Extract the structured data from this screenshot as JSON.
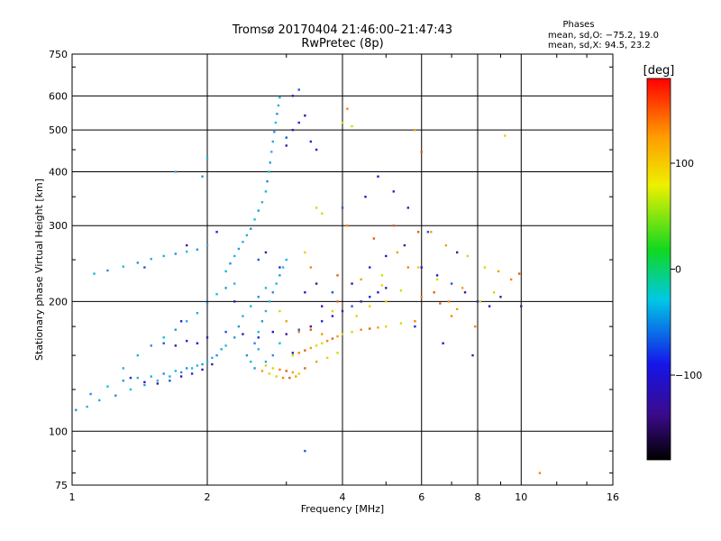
{
  "chart_data": {
    "type": "scatter",
    "title": "Tromsø 20170404 21:46:00–21:47:43",
    "subtitle": "RwPretec (8p)",
    "xlabel": "Frequency [MHz]",
    "ylabel": "Stationary phase Virtual Height [km]",
    "x_scale": "log",
    "y_scale": "log",
    "xlim": [
      1,
      16
    ],
    "ylim": [
      75,
      750
    ],
    "x_ticks": [
      1,
      2,
      4,
      6,
      8,
      10,
      16
    ],
    "y_ticks": [
      75,
      100,
      200,
      300,
      400,
      500,
      600,
      750
    ],
    "x_tick_labels": [
      "1",
      "2",
      "4",
      "6",
      "8",
      "10",
      "16"
    ],
    "y_tick_labels": [
      "75",
      "100",
      "200",
      "300",
      "400",
      "500",
      "600",
      "750"
    ],
    "grid": true,
    "colorbar": {
      "label": "[deg]",
      "range": [
        -180,
        180
      ],
      "ticks": [
        100,
        0,
        -100
      ],
      "tick_labels": [
        "100",
        "0",
        "−100"
      ]
    },
    "stats": {
      "heading": "Phases",
      "line_o": "mean, sd,O: −75.2, 19.0",
      "line_x": "mean, sd,X:  94.5, 23.2"
    },
    "series": [
      {
        "points": [
          [
            1.02,
            112
          ],
          [
            1.08,
            114
          ],
          [
            1.15,
            118
          ],
          [
            1.25,
            121
          ],
          [
            1.35,
            125
          ],
          [
            1.45,
            128
          ],
          [
            1.55,
            131
          ],
          [
            1.65,
            134
          ],
          [
            1.75,
            137
          ],
          [
            1.85,
            140
          ],
          [
            1.95,
            143
          ],
          [
            2.05,
            148
          ],
          [
            2.15,
            155
          ],
          [
            1.1,
            122
          ],
          [
            1.2,
            127
          ],
          [
            1.3,
            131
          ],
          [
            1.4,
            133
          ],
          [
            1.5,
            134
          ],
          [
            1.6,
            136
          ],
          [
            1.7,
            138
          ],
          [
            1.8,
            140
          ],
          [
            1.9,
            142
          ],
          [
            2.0,
            145
          ],
          [
            2.1,
            150
          ],
          [
            2.2,
            158
          ],
          [
            2.3,
            165
          ],
          [
            1.3,
            140
          ],
          [
            1.4,
            150
          ],
          [
            1.5,
            158
          ],
          [
            1.6,
            165
          ],
          [
            1.7,
            172
          ],
          [
            1.8,
            180
          ],
          [
            1.9,
            188
          ],
          [
            2.0,
            198
          ],
          [
            2.1,
            208
          ],
          [
            2.2,
            215
          ],
          [
            2.3,
            220
          ],
          [
            1.12,
            232
          ],
          [
            1.2,
            236
          ],
          [
            1.3,
            241
          ],
          [
            1.4,
            246
          ],
          [
            1.5,
            251
          ],
          [
            1.6,
            255
          ],
          [
            1.7,
            258
          ],
          [
            1.8,
            261
          ],
          [
            1.9,
            264
          ],
          [
            2.0,
            270
          ],
          [
            2.2,
            235
          ],
          [
            2.25,
            245
          ],
          [
            2.3,
            255
          ],
          [
            2.35,
            265
          ],
          [
            2.4,
            275
          ],
          [
            2.45,
            285
          ],
          [
            2.5,
            295
          ],
          [
            2.55,
            310
          ],
          [
            2.6,
            325
          ],
          [
            2.65,
            340
          ],
          [
            2.7,
            360
          ],
          [
            2.72,
            380
          ],
          [
            2.74,
            400
          ],
          [
            2.76,
            420
          ],
          [
            2.78,
            445
          ],
          [
            2.8,
            470
          ],
          [
            2.82,
            495
          ],
          [
            2.84,
            520
          ],
          [
            2.86,
            545
          ],
          [
            2.88,
            570
          ],
          [
            2.9,
            595
          ],
          [
            2.55,
            160
          ],
          [
            2.6,
            170
          ],
          [
            2.65,
            180
          ],
          [
            2.7,
            190
          ],
          [
            2.75,
            200
          ],
          [
            2.8,
            210
          ],
          [
            2.85,
            220
          ],
          [
            2.9,
            230
          ],
          [
            2.95,
            240
          ],
          [
            3.0,
            250
          ],
          [
            2.45,
            150
          ],
          [
            2.5,
            145
          ],
          [
            2.55,
            140
          ],
          [
            2.6,
            155
          ],
          [
            2.7,
            145
          ],
          [
            2.8,
            150
          ],
          [
            2.9,
            160
          ],
          [
            2.35,
            175
          ],
          [
            2.4,
            185
          ],
          [
            2.5,
            195
          ],
          [
            2.6,
            205
          ],
          [
            2.7,
            215
          ],
          [
            1.95,
            390
          ],
          [
            1.7,
            400
          ],
          [
            2.0,
            430
          ]
        ]
      },
      {
        "points": [
          [
            1.35,
            133
          ],
          [
            1.45,
            130
          ],
          [
            1.55,
            129
          ],
          [
            1.65,
            131
          ],
          [
            1.75,
            134
          ],
          [
            1.85,
            136
          ],
          [
            1.95,
            139
          ],
          [
            2.05,
            143
          ],
          [
            1.6,
            160
          ],
          [
            1.7,
            158
          ],
          [
            1.8,
            162
          ],
          [
            1.9,
            160
          ],
          [
            2.0,
            165
          ],
          [
            2.2,
            170
          ],
          [
            2.4,
            168
          ],
          [
            2.6,
            165
          ],
          [
            2.8,
            170
          ],
          [
            3.0,
            168
          ],
          [
            3.2,
            172
          ],
          [
            3.4,
            175
          ],
          [
            3.6,
            180
          ],
          [
            3.8,
            185
          ],
          [
            4.0,
            190
          ],
          [
            4.2,
            195
          ],
          [
            4.4,
            200
          ],
          [
            4.6,
            205
          ],
          [
            4.8,
            210
          ],
          [
            5.0,
            215
          ],
          [
            3.0,
            480
          ],
          [
            3.1,
            500
          ],
          [
            3.2,
            520
          ],
          [
            3.3,
            540
          ],
          [
            3.1,
            600
          ],
          [
            3.2,
            620
          ],
          [
            3.0,
            460
          ],
          [
            3.4,
            470
          ],
          [
            3.5,
            450
          ],
          [
            3.6,
            195
          ],
          [
            3.8,
            210
          ],
          [
            4.2,
            220
          ],
          [
            4.6,
            240
          ],
          [
            5.0,
            255
          ],
          [
            5.5,
            270
          ],
          [
            4.0,
            330
          ],
          [
            4.5,
            350
          ],
          [
            5.2,
            360
          ],
          [
            6.0,
            240
          ],
          [
            6.5,
            230
          ],
          [
            7.0,
            220
          ],
          [
            7.5,
            210
          ],
          [
            8.0,
            200
          ],
          [
            8.5,
            195
          ],
          [
            9.0,
            205
          ],
          [
            2.6,
            250
          ],
          [
            2.7,
            260
          ],
          [
            2.9,
            240
          ],
          [
            3.3,
            210
          ],
          [
            3.5,
            220
          ],
          [
            1.45,
            240
          ],
          [
            1.8,
            270
          ],
          [
            2.1,
            290
          ],
          [
            4.8,
            390
          ],
          [
            5.6,
            330
          ],
          [
            6.2,
            290
          ],
          [
            7.2,
            260
          ],
          [
            1.75,
            180
          ],
          [
            2.3,
            200
          ],
          [
            3.1,
            152
          ],
          [
            3.3,
            90
          ],
          [
            10.0,
            195
          ],
          [
            5.8,
            175
          ],
          [
            6.7,
            160
          ],
          [
            7.8,
            150
          ]
        ]
      },
      {
        "points": [
          [
            2.65,
            138
          ],
          [
            2.75,
            136
          ],
          [
            2.85,
            134
          ],
          [
            2.95,
            133
          ],
          [
            3.05,
            133
          ],
          [
            3.15,
            134
          ],
          [
            2.7,
            142
          ],
          [
            2.8,
            140
          ],
          [
            2.9,
            139
          ],
          [
            3.0,
            138
          ],
          [
            3.1,
            137
          ],
          [
            3.2,
            136
          ],
          [
            3.1,
            150
          ],
          [
            3.2,
            152
          ],
          [
            3.3,
            154
          ],
          [
            3.4,
            156
          ],
          [
            3.5,
            158
          ],
          [
            3.6,
            160
          ],
          [
            3.7,
            162
          ],
          [
            3.8,
            164
          ],
          [
            3.9,
            166
          ],
          [
            4.0,
            168
          ],
          [
            4.2,
            170
          ],
          [
            4.4,
            172
          ],
          [
            4.6,
            173
          ],
          [
            4.8,
            174
          ],
          [
            5.0,
            175
          ],
          [
            5.4,
            178
          ],
          [
            5.8,
            180
          ],
          [
            3.3,
            140
          ],
          [
            3.5,
            145
          ],
          [
            3.7,
            148
          ],
          [
            3.9,
            152
          ],
          [
            3.2,
            170
          ],
          [
            3.4,
            172
          ],
          [
            3.6,
            168
          ],
          [
            4.2,
            510
          ],
          [
            4.0,
            520
          ],
          [
            4.1,
            560
          ],
          [
            6.0,
            445
          ],
          [
            5.8,
            500
          ],
          [
            9.2,
            485
          ],
          [
            3.5,
            330
          ],
          [
            4.1,
            300
          ],
          [
            4.7,
            280
          ],
          [
            5.3,
            260
          ],
          [
            5.9,
            240
          ],
          [
            6.5,
            225
          ],
          [
            3.4,
            240
          ],
          [
            3.9,
            230
          ],
          [
            4.4,
            225
          ],
          [
            4.9,
            218
          ],
          [
            5.4,
            212
          ],
          [
            6.0,
            205
          ],
          [
            6.6,
            198
          ],
          [
            7.2,
            192
          ],
          [
            8.1,
            200
          ],
          [
            8.7,
            210
          ],
          [
            9.5,
            225
          ],
          [
            9.9,
            232
          ],
          [
            6.8,
            270
          ],
          [
            7.6,
            255
          ],
          [
            8.3,
            240
          ],
          [
            11.0,
            80
          ],
          [
            5.2,
            300
          ],
          [
            6.3,
            290
          ],
          [
            3.8,
            190
          ],
          [
            4.3,
            185
          ],
          [
            7.0,
            185
          ],
          [
            5.9,
            290
          ],
          [
            7.4,
            215
          ],
          [
            4.6,
            195
          ],
          [
            3.6,
            320
          ],
          [
            5.6,
            240
          ],
          [
            6.4,
            210
          ],
          [
            8.9,
            235
          ],
          [
            3.3,
            260
          ],
          [
            4.9,
            230
          ],
          [
            6.9,
            200
          ],
          [
            3.9,
            200
          ],
          [
            3.0,
            180
          ],
          [
            5.0,
            200
          ],
          [
            2.9,
            190
          ],
          [
            7.9,
            175
          ]
        ]
      }
    ]
  }
}
